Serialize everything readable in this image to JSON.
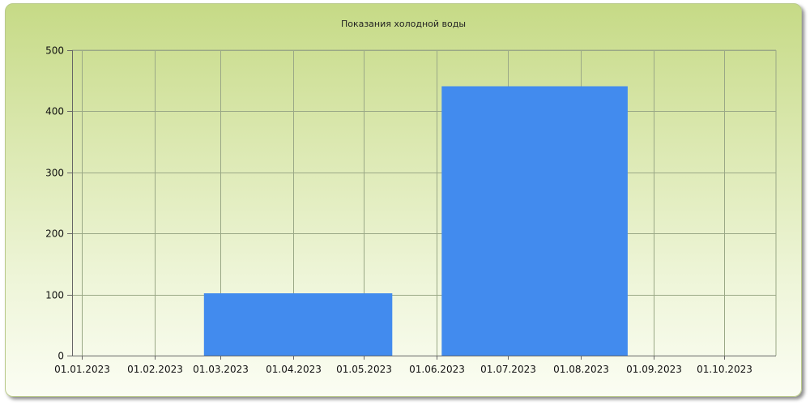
{
  "chart_data": {
    "type": "bar",
    "title": "Показания холодной воды",
    "xlabel": "",
    "ylabel": "",
    "x_ticks": [
      "01.01.2023",
      "01.02.2023",
      "01.03.2023",
      "01.04.2023",
      "01.05.2023",
      "01.06.2023",
      "01.07.2023",
      "01.08.2023",
      "01.09.2023",
      "01.10.2023"
    ],
    "x_range": [
      "2022-12-28",
      "2023-10-23"
    ],
    "ylim": [
      0,
      500
    ],
    "y_ticks": [
      "0",
      "100",
      "200",
      "300",
      "400",
      "500"
    ],
    "grid": true,
    "bars": [
      {
        "start": "2023-02-22",
        "end": "2023-05-13",
        "value": 102
      },
      {
        "start": "2023-06-03",
        "end": "2023-08-21",
        "value": 441
      }
    ],
    "colors": {
      "bar": "#428bee",
      "grid": "#9aa886",
      "axis": "#666666"
    }
  }
}
